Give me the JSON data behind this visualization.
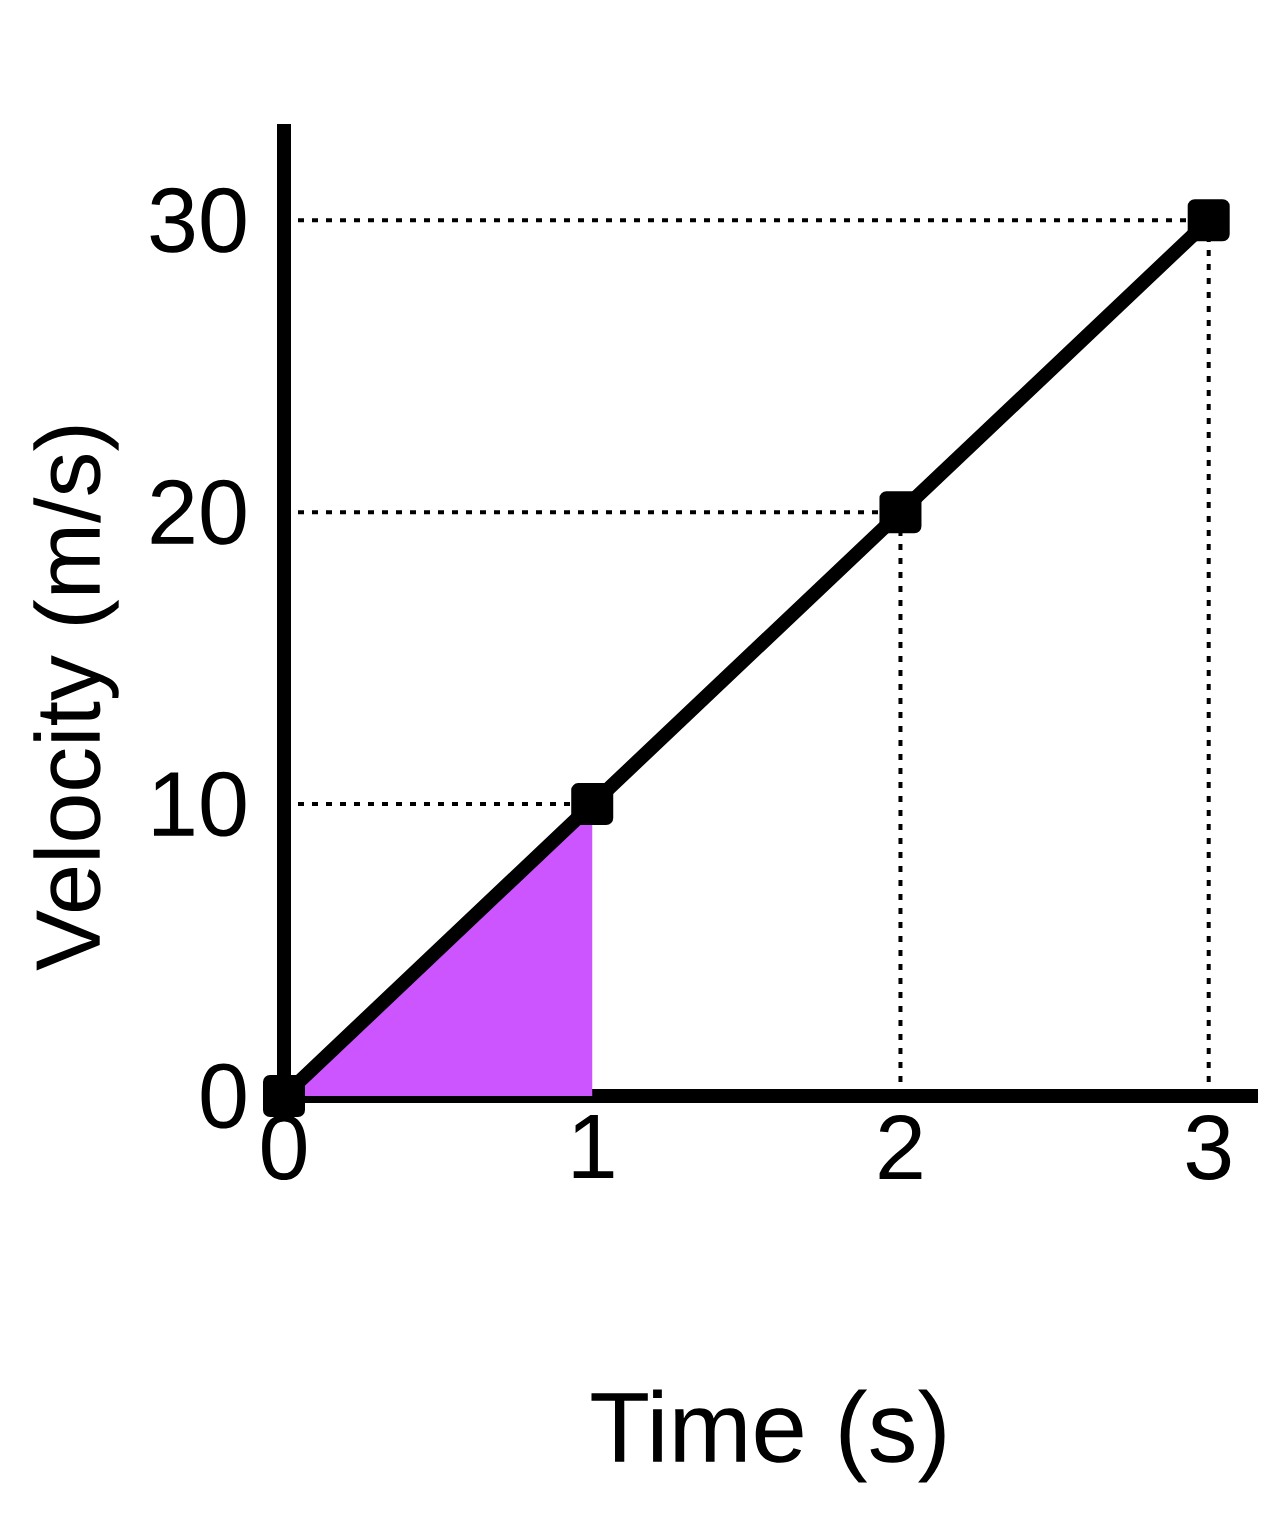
{
  "chart_data": {
    "type": "line",
    "xlabel": "Time (s)",
    "ylabel": "Velocity (m/s)",
    "series": [
      {
        "type": "area",
        "color": "#cc55ff",
        "x": [
          0,
          1
        ],
        "values": [
          0,
          10
        ]
      },
      {
        "color": "#000000",
        "x": [
          0,
          1,
          2,
          3
        ],
        "values": [
          0,
          10,
          20,
          30
        ],
        "marker": "square"
      }
    ],
    "xlim": [
      0,
      3.16
    ],
    "ylim": [
      0,
      33.3
    ],
    "xticks": [
      0,
      1,
      2,
      3
    ],
    "yticks": [
      0,
      10,
      20,
      30
    ],
    "ref_lines": [
      {
        "axis": "y",
        "value": 10,
        "line_style": "dotted"
      },
      {
        "axis": "y",
        "value": 20,
        "line_style": "dotted"
      },
      {
        "axis": "y",
        "value": 30,
        "line_style": "dotted"
      },
      {
        "axis": "x",
        "value": 2,
        "line_style": "dotted"
      },
      {
        "axis": "x",
        "value": 3,
        "line_style": "dotted"
      }
    ],
    "grid": false
  }
}
